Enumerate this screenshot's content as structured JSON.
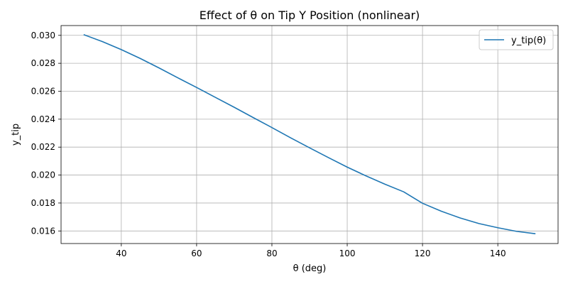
{
  "chart_data": {
    "type": "line",
    "title": "Effect of θ on Tip Y Position (nonlinear)",
    "xlabel": "θ (deg)",
    "ylabel": "y_tip",
    "xlim": [
      24,
      156
    ],
    "ylim": [
      0.0151,
      0.0307
    ],
    "xticks": [
      40,
      60,
      80,
      100,
      120,
      140
    ],
    "xtick_labels": [
      "40",
      "60",
      "80",
      "100",
      "120",
      "140"
    ],
    "yticks": [
      0.016,
      0.018,
      0.02,
      0.022,
      0.024,
      0.026,
      0.028,
      0.03
    ],
    "ytick_labels": [
      "0.016",
      "0.018",
      "0.020",
      "0.022",
      "0.024",
      "0.026",
      "0.028",
      "0.030"
    ],
    "grid": true,
    "legend_position": "top-right",
    "series": [
      {
        "name": "y_tip(θ)",
        "color": "#1f77b4",
        "x": [
          30,
          35,
          40,
          45,
          50,
          55,
          60,
          65,
          70,
          75,
          80,
          85,
          90,
          95,
          100,
          105,
          110,
          115,
          120,
          125,
          130,
          135,
          140,
          145,
          150
        ],
        "y": [
          0.03005,
          0.02955,
          0.02898,
          0.02835,
          0.02767,
          0.02696,
          0.02627,
          0.02556,
          0.02485,
          0.02412,
          0.0234,
          0.02266,
          0.02195,
          0.02125,
          0.02057,
          0.01994,
          0.01935,
          0.0188,
          0.01798,
          0.01741,
          0.01693,
          0.01653,
          0.01623,
          0.01597,
          0.0158
        ]
      }
    ]
  }
}
